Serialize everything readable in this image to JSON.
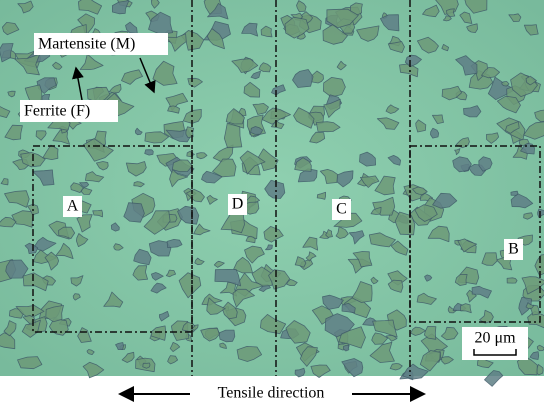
{
  "labels": {
    "martensite": "Martensite (M)",
    "ferrite": "Ferrite (F)",
    "region_a": "A",
    "region_d": "D",
    "region_c": "C",
    "region_b": "B",
    "scale_bar": "20 μm",
    "caption": "Tensile direction"
  }
}
